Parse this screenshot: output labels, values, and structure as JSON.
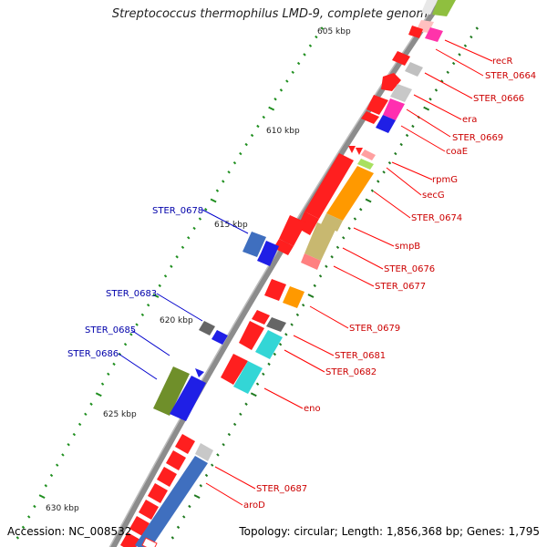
{
  "title": "Streptococcus thermophilus LMD-9, complete genome",
  "accession": "Accession: NC_008532",
  "topology": "Topology: circular; Length: 1,856,368 bp; Genes: 1,795",
  "colors": {
    "backbone": "#8c8c8c",
    "tick_major": "#1f7a1f",
    "tick_minor": "#1f8f1f",
    "label_red": "#ff0000",
    "label_blue": "#0000cc",
    "label_text_red": "#cc0000",
    "label_text_blue": "#0000aa"
  },
  "kbp_labels": [
    "605 kbp",
    "610 kbp",
    "615 kbp",
    "620 kbp",
    "625 kbp",
    "630 kbp"
  ],
  "right_labels": [
    "recR",
    "STER_0664",
    "STER_0666",
    "era",
    "STER_0669",
    "coaE",
    "rpmG",
    "secG",
    "STER_0674",
    "smpB",
    "STER_0676",
    "STER_0677",
    "STER_0679",
    "STER_0681",
    "STER_0682",
    "eno",
    "STER_0687",
    "aroD"
  ],
  "left_labels": [
    "STER_0678",
    "STER_0683",
    "STER_0685",
    "STER_0686"
  ]
}
